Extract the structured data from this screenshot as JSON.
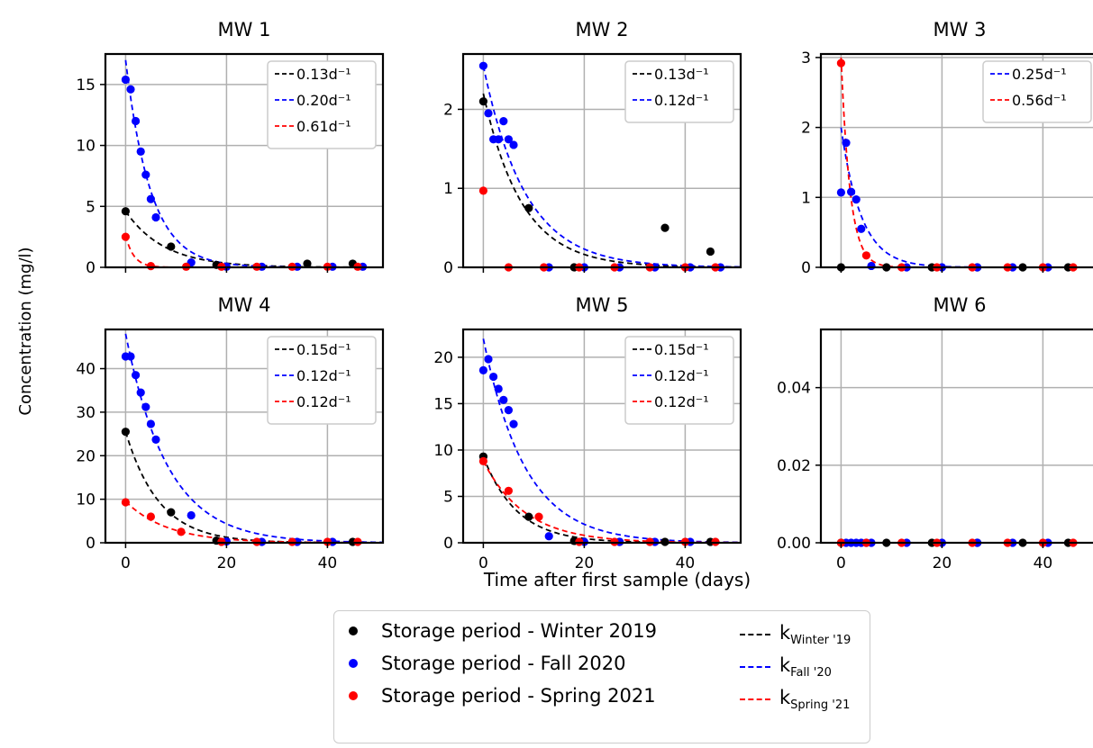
{
  "figure": {
    "ylabel": "Concentration (mg/l)",
    "xlabel": "Time after first sample (days)"
  },
  "colors": {
    "winter": "#000000",
    "fall": "#0000ff",
    "spring": "#ff0000",
    "grid": "#b0b0b0"
  },
  "legend": {
    "items": [
      {
        "kind": "dot",
        "color": "#000000",
        "label": "Storage period - Winter 2019"
      },
      {
        "kind": "dot",
        "color": "#0000ff",
        "label": "Storage period - Fall 2020"
      },
      {
        "kind": "dot",
        "color": "#ff0000",
        "label": "Storage period - Spring 2021"
      },
      {
        "kind": "line",
        "color": "#000000",
        "k": "k",
        "sub": "Winter '19"
      },
      {
        "kind": "line",
        "color": "#0000ff",
        "k": "k",
        "sub": "Fall '20"
      },
      {
        "kind": "line",
        "color": "#ff0000",
        "k": "k",
        "sub": "Spring '21"
      }
    ]
  },
  "chart_data": [
    {
      "type": "scatter",
      "title": "MW 1",
      "xlim": [
        -4,
        51
      ],
      "ylim": [
        0,
        17.5
      ],
      "xticks": [
        0,
        20,
        40
      ],
      "yticks": [
        0,
        5,
        10,
        15
      ],
      "ytick_labels": [
        "0",
        "5",
        "10",
        "15"
      ],
      "series": [
        {
          "name": "Storage period - Winter 2019",
          "color": "#000000",
          "x": [
            0,
            9,
            18,
            36,
            45
          ],
          "y": [
            4.6,
            1.7,
            0.2,
            0.3,
            0.3
          ]
        },
        {
          "name": "Storage period - Fall 2020",
          "color": "#0000ff",
          "x": [
            0,
            1,
            2,
            3,
            4,
            5,
            6,
            13,
            20,
            27,
            34,
            41,
            47
          ],
          "y": [
            15.4,
            14.6,
            12.0,
            9.5,
            7.6,
            5.6,
            4.1,
            0.4,
            0.05,
            0.05,
            0.05,
            0.05,
            0.05
          ]
        },
        {
          "name": "Storage period - Spring 2021",
          "color": "#ff0000",
          "x": [
            0,
            5,
            12,
            19,
            26,
            33,
            40,
            46
          ],
          "y": [
            2.5,
            0.1,
            0.05,
            0.05,
            0.05,
            0.05,
            0.05,
            0.05
          ]
        }
      ],
      "fits": [
        {
          "name": "k Winter '19",
          "label": "0.13d⁻¹",
          "k": 0.13,
          "c0": 4.6,
          "color": "#000000"
        },
        {
          "name": "k Fall '20",
          "label": "0.20d⁻¹",
          "k": 0.2,
          "c0": 17.0,
          "color": "#0000ff"
        },
        {
          "name": "k Spring '21",
          "label": "0.61d⁻¹",
          "k": 0.61,
          "c0": 2.6,
          "color": "#ff0000"
        }
      ]
    },
    {
      "type": "scatter",
      "title": "MW 2",
      "xlim": [
        -4,
        51
      ],
      "ylim": [
        0,
        2.7
      ],
      "xticks": [
        0,
        20,
        40
      ],
      "yticks": [
        0,
        1,
        2
      ],
      "ytick_labels": [
        "0",
        "1",
        "2"
      ],
      "series": [
        {
          "name": "Storage period - Winter 2019",
          "color": "#000000",
          "x": [
            0,
            9,
            18,
            36,
            45
          ],
          "y": [
            2.1,
            0.75,
            0.0,
            0.5,
            0.2
          ]
        },
        {
          "name": "Storage period - Fall 2020",
          "color": "#0000ff",
          "x": [
            0,
            1,
            2,
            3,
            4,
            5,
            6,
            13,
            20,
            27,
            34,
            41,
            47
          ],
          "y": [
            2.55,
            1.95,
            1.62,
            1.62,
            1.85,
            1.62,
            1.55,
            0.0,
            0.0,
            0.0,
            0.0,
            0.0,
            0.0
          ]
        },
        {
          "name": "Storage period - Spring 2021",
          "color": "#ff0000",
          "x": [
            0,
            5,
            12,
            19,
            26,
            33,
            40,
            46
          ],
          "y": [
            0.97,
            0.0,
            0.0,
            0.0,
            0.0,
            0.0,
            0.0,
            0.0
          ]
        }
      ],
      "fits": [
        {
          "name": "k Winter '19",
          "label": "0.13d⁻¹",
          "k": 0.13,
          "c0": 2.2,
          "color": "#000000"
        },
        {
          "name": "k Fall '20",
          "label": "0.12d⁻¹",
          "k": 0.12,
          "c0": 2.55,
          "color": "#0000ff"
        }
      ]
    },
    {
      "type": "scatter",
      "title": "MW 3",
      "xlim": [
        -4,
        51
      ],
      "ylim": [
        0,
        3.05
      ],
      "xticks": [
        0,
        20,
        40
      ],
      "yticks": [
        0,
        1,
        2,
        3
      ],
      "ytick_labels": [
        "0",
        "1",
        "2",
        "3"
      ],
      "series": [
        {
          "name": "Storage period - Winter 2019",
          "color": "#000000",
          "x": [
            0,
            9,
            18,
            27,
            36,
            45
          ],
          "y": [
            0,
            0,
            0,
            0,
            0,
            0
          ]
        },
        {
          "name": "Storage period - Fall 2020",
          "color": "#0000ff",
          "x": [
            0,
            1,
            2,
            3,
            4,
            6,
            13,
            20,
            27,
            34,
            41
          ],
          "y": [
            1.07,
            1.78,
            1.08,
            0.97,
            0.55,
            0.02,
            0.0,
            0.0,
            0.0,
            0.0,
            0.0
          ]
        },
        {
          "name": "Storage period - Spring 2021",
          "color": "#ff0000",
          "x": [
            0,
            5,
            12,
            19,
            26,
            33,
            40,
            46
          ],
          "y": [
            2.92,
            0.17,
            0.0,
            0.0,
            0.0,
            0.0,
            0.0,
            0.0
          ]
        }
      ],
      "fits": [
        {
          "name": "k Fall '20",
          "label": "0.25d⁻¹",
          "k": 0.25,
          "c0": 2.0,
          "color": "#0000ff"
        },
        {
          "name": "k Spring '21",
          "label": "0.56d⁻¹",
          "k": 0.56,
          "c0": 3.0,
          "color": "#ff0000"
        }
      ]
    },
    {
      "type": "scatter",
      "title": "MW 4",
      "xlim": [
        -4,
        51
      ],
      "ylim": [
        0,
        49
      ],
      "xticks": [
        0,
        20,
        40
      ],
      "yticks": [
        0,
        10,
        20,
        30,
        40
      ],
      "ytick_labels": [
        "0",
        "10",
        "20",
        "30",
        "40"
      ],
      "series": [
        {
          "name": "Storage period - Winter 2019",
          "color": "#000000",
          "x": [
            0,
            9,
            18,
            45
          ],
          "y": [
            25.5,
            7.0,
            0.5,
            0.2
          ]
        },
        {
          "name": "Storage period - Fall 2020",
          "color": "#0000ff",
          "x": [
            0,
            1,
            2,
            3,
            4,
            5,
            6,
            13,
            20,
            27,
            34,
            41
          ],
          "y": [
            42.8,
            42.8,
            38.5,
            34.5,
            31.2,
            27.3,
            23.7,
            6.3,
            0.3,
            0.2,
            0.2,
            0.2
          ]
        },
        {
          "name": "Storage period - Spring 2021",
          "color": "#ff0000",
          "x": [
            0,
            5,
            11,
            19,
            26,
            33,
            40,
            46
          ],
          "y": [
            9.3,
            6.0,
            2.5,
            0.2,
            0.2,
            0.2,
            0.2,
            0.2
          ]
        }
      ],
      "fits": [
        {
          "name": "k Winter '19",
          "label": "0.15d⁻¹",
          "k": 0.15,
          "c0": 25.5,
          "color": "#000000"
        },
        {
          "name": "k Fall '20",
          "label": "0.12d⁻¹",
          "k": 0.12,
          "c0": 48.0,
          "color": "#0000ff"
        },
        {
          "name": "k Spring '21",
          "label": "0.12d⁻¹",
          "k": 0.12,
          "c0": 9.5,
          "color": "#ff0000"
        }
      ]
    },
    {
      "type": "scatter",
      "title": "MW 5",
      "xlim": [
        -4,
        51
      ],
      "ylim": [
        0,
        23
      ],
      "xticks": [
        0,
        20,
        40
      ],
      "yticks": [
        0,
        5,
        10,
        15,
        20
      ],
      "ytick_labels": [
        "0",
        "5",
        "10",
        "15",
        "20"
      ],
      "series": [
        {
          "name": "Storage period - Winter 2019",
          "color": "#000000",
          "x": [
            0,
            9,
            18,
            27,
            36,
            45
          ],
          "y": [
            9.3,
            2.8,
            0.2,
            0.1,
            0.1,
            0.1
          ]
        },
        {
          "name": "Storage period - Fall 2020",
          "color": "#0000ff",
          "x": [
            0,
            1,
            2,
            3,
            4,
            5,
            6,
            13,
            20,
            27,
            34,
            41
          ],
          "y": [
            18.6,
            19.8,
            17.9,
            16.6,
            15.4,
            14.3,
            12.8,
            0.7,
            0.1,
            0.1,
            0.1,
            0.1
          ]
        },
        {
          "name": "Storage period - Spring 2021",
          "color": "#ff0000",
          "x": [
            0,
            5,
            11,
            19,
            26,
            33,
            40,
            46
          ],
          "y": [
            8.8,
            5.6,
            2.8,
            0.1,
            0.1,
            0.1,
            0.1,
            0.1
          ]
        }
      ],
      "fits": [
        {
          "name": "k Winter '19",
          "label": "0.15d⁻¹",
          "k": 0.15,
          "c0": 9.3,
          "color": "#000000"
        },
        {
          "name": "k Fall '20",
          "label": "0.12d⁻¹",
          "k": 0.12,
          "c0": 22.0,
          "color": "#0000ff"
        },
        {
          "name": "k Spring '21",
          "label": "0.12d⁻¹",
          "k": 0.12,
          "c0": 8.8,
          "color": "#ff0000"
        }
      ]
    },
    {
      "type": "scatter",
      "title": "MW 6",
      "xlim": [
        -4,
        51
      ],
      "ylim": [
        0,
        0.055
      ],
      "xticks": [
        0,
        20,
        40
      ],
      "yticks": [
        0,
        0.02,
        0.04
      ],
      "ytick_labels": [
        "0.00",
        "0.02",
        "0.04"
      ],
      "series": [
        {
          "name": "Storage period - Winter 2019",
          "color": "#000000",
          "x": [
            0,
            9,
            18,
            27,
            36,
            45
          ],
          "y": [
            0,
            0,
            0,
            0,
            0,
            0
          ]
        },
        {
          "name": "Storage period - Fall 2020",
          "color": "#0000ff",
          "x": [
            1,
            2,
            3,
            4,
            5,
            6,
            13,
            20,
            27,
            34,
            41
          ],
          "y": [
            0,
            0,
            0,
            0,
            0,
            0,
            0,
            0,
            0,
            0,
            0
          ]
        },
        {
          "name": "Storage period - Spring 2021",
          "color": "#ff0000",
          "x": [
            0,
            5,
            12,
            19,
            26,
            33,
            40,
            46
          ],
          "y": [
            0,
            0,
            0,
            0,
            0,
            0,
            0,
            0
          ]
        }
      ],
      "fits": []
    }
  ]
}
